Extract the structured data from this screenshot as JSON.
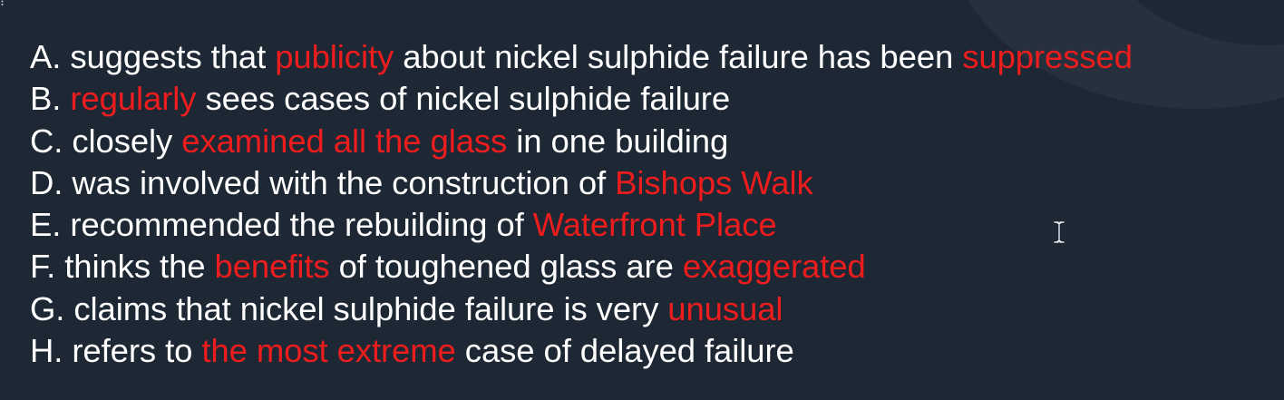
{
  "options": [
    {
      "parts": [
        {
          "text": "A. suggests that ",
          "hl": false
        },
        {
          "text": "publicity",
          "hl": true
        },
        {
          "text": " about nickel sulphide failure has been ",
          "hl": false
        },
        {
          "text": "suppressed",
          "hl": true
        }
      ]
    },
    {
      "parts": [
        {
          "text": "B. ",
          "hl": false
        },
        {
          "text": "regularly",
          "hl": true
        },
        {
          "text": " sees cases of nickel sulphide failure",
          "hl": false
        }
      ]
    },
    {
      "parts": [
        {
          "text": "C. closely ",
          "hl": false
        },
        {
          "text": "examined all the glass",
          "hl": true
        },
        {
          "text": " in one building",
          "hl": false
        }
      ]
    },
    {
      "parts": [
        {
          "text": "D. was involved with the construction of ",
          "hl": false
        },
        {
          "text": "Bishops Walk",
          "hl": true
        }
      ]
    },
    {
      "parts": [
        {
          "text": "E. recommended the rebuilding of ",
          "hl": false
        },
        {
          "text": "Waterfront Place",
          "hl": true
        }
      ]
    },
    {
      "parts": [
        {
          "text": "F. thinks the ",
          "hl": false
        },
        {
          "text": "benefits",
          "hl": true
        },
        {
          "text": " of toughened glass are ",
          "hl": false
        },
        {
          "text": "exaggerated",
          "hl": true
        }
      ]
    },
    {
      "parts": [
        {
          "text": "G. claims that nickel sulphide failure is very ",
          "hl": false
        },
        {
          "text": "unusual",
          "hl": true
        }
      ]
    },
    {
      "parts": [
        {
          "text": "H. refers to ",
          "hl": false
        },
        {
          "text": "the most extreme",
          "hl": true
        },
        {
          "text": " case of delayed failure",
          "hl": false
        }
      ]
    }
  ],
  "colors": {
    "background": "#1e2734",
    "text": "#ffffff",
    "highlight": "#ee1d1d"
  },
  "icons": {
    "cursor": "i-beam-cursor-icon",
    "corner": "vertical-dots-icon"
  }
}
